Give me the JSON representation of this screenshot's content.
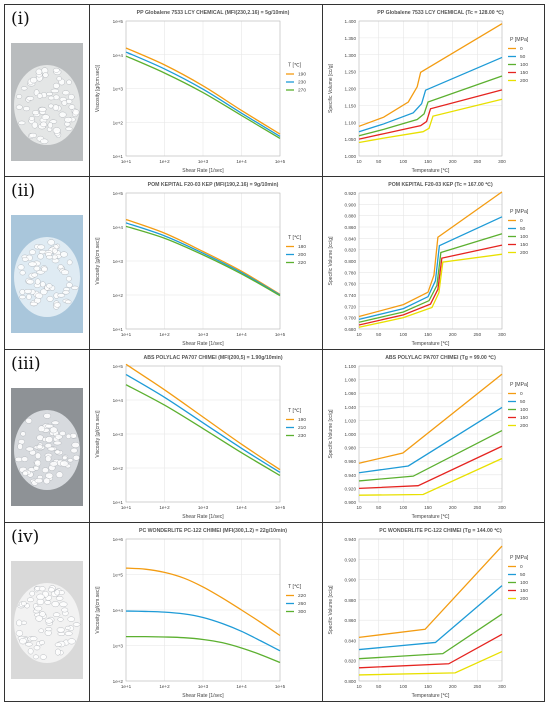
{
  "panels": [
    {
      "label": "(i)",
      "pellet_color": "#e9eaea",
      "pellet_bg": "#b9bcbe"
    },
    {
      "label": "(ii)",
      "pellet_color": "#e4eef5",
      "pellet_bg": "#a9c6db"
    },
    {
      "label": "(iii)",
      "pellet_color": "#dfe2e5",
      "pellet_bg": "#8e9296"
    },
    {
      "label": "(iv)",
      "pellet_color": "#f4f4f4",
      "pellet_bg": "#d9d9d9"
    }
  ],
  "chart_data": [
    {
      "type": "line",
      "scale": "loglog",
      "title": "PP Globalene 7533 LCY CHEMICAL (MFI(230,2.16) = 5g/10min)",
      "xlabel": "Shear Rate [1/sec]",
      "ylabel": "Viscosity [g/(cm.sec)]",
      "xticks": [
        "1e+1",
        "1e+2",
        "1e+3",
        "1e+4",
        "1e+5"
      ],
      "yticks": [
        "1e+1",
        "1e+2",
        "1e+3",
        "1e+4",
        "1e+5"
      ],
      "xlim": [
        1,
        5
      ],
      "ylim": [
        1,
        5
      ],
      "legend_title": "T [℃]",
      "series": [
        {
          "name": "190",
          "color": "#f39c12",
          "x": [
            1,
            2,
            3,
            4,
            5
          ],
          "y": [
            4.2,
            3.7,
            3.08,
            2.35,
            1.65
          ]
        },
        {
          "name": "230",
          "color": "#1e9bd7",
          "x": [
            1,
            2,
            3,
            4,
            5
          ],
          "y": [
            4.08,
            3.58,
            2.98,
            2.27,
            1.58
          ]
        },
        {
          "name": "270",
          "color": "#5cb030",
          "x": [
            1,
            2,
            3,
            4,
            5
          ],
          "y": [
            3.96,
            3.46,
            2.88,
            2.2,
            1.52
          ]
        }
      ]
    },
    {
      "type": "line",
      "scale": "linear",
      "title": "PP Globalene 7533 LCY CHEMICAL (Tc = 128.00 ℃)",
      "xlabel": "Temperature [℃]",
      "ylabel": "Specific Volume [cc/g]",
      "xticks": [
        "10",
        "50",
        "100",
        "150",
        "200",
        "250",
        "300"
      ],
      "xtick_vals": [
        10,
        50,
        100,
        150,
        200,
        250,
        300
      ],
      "yticks": [
        "1.000",
        "1.050",
        "1.100",
        "1.150",
        "1.200",
        "1.250",
        "1.300",
        "1.350",
        "1.400"
      ],
      "ytick_vals": [
        1.0,
        1.05,
        1.1,
        1.15,
        1.2,
        1.25,
        1.3,
        1.35,
        1.4
      ],
      "xlim": [
        10,
        300
      ],
      "ylim": [
        1.0,
        1.4
      ],
      "legend_title": "P [MPa]",
      "series": [
        {
          "name": "0",
          "color": "#f39c12",
          "x": [
            10,
            60,
            110,
            128,
            135,
            300
          ],
          "y": [
            1.088,
            1.115,
            1.16,
            1.205,
            1.248,
            1.392
          ]
        },
        {
          "name": "50",
          "color": "#1e9bd7",
          "x": [
            10,
            60,
            120,
            137,
            145,
            300
          ],
          "y": [
            1.072,
            1.095,
            1.128,
            1.155,
            1.195,
            1.292
          ]
        },
        {
          "name": "100",
          "color": "#5cb030",
          "x": [
            10,
            60,
            128,
            142,
            150,
            300
          ],
          "y": [
            1.06,
            1.079,
            1.108,
            1.125,
            1.16,
            1.237
          ]
        },
        {
          "name": "150",
          "color": "#e52420",
          "x": [
            10,
            60,
            135,
            147,
            155,
            300
          ],
          "y": [
            1.05,
            1.066,
            1.09,
            1.102,
            1.14,
            1.196
          ]
        },
        {
          "name": "200",
          "color": "#e8e000",
          "x": [
            10,
            60,
            140,
            152,
            160,
            300
          ],
          "y": [
            1.04,
            1.053,
            1.072,
            1.082,
            1.118,
            1.168
          ]
        }
      ]
    },
    {
      "type": "line",
      "scale": "loglog",
      "title": "POM KEPITAL F20-03 KEP (MFI(190,2.16) = 9g/10min)",
      "xlabel": "Shear Rate [1/sec]",
      "ylabel": "Viscosity [g/(cm.sec)]",
      "xticks": [
        "1e+1",
        "1e+2",
        "1e+3",
        "1e+4",
        "1e+5"
      ],
      "yticks": [
        "1e+1",
        "1e+2",
        "1e+3",
        "1e+4",
        "1e+5"
      ],
      "xlim": [
        1,
        5
      ],
      "ylim": [
        1,
        5
      ],
      "legend_title": "T [℃]",
      "series": [
        {
          "name": "180",
          "color": "#f39c12",
          "x": [
            1,
            2,
            3,
            4,
            5
          ],
          "y": [
            4.22,
            3.82,
            3.28,
            2.7,
            2.02
          ]
        },
        {
          "name": "200",
          "color": "#1e9bd7",
          "x": [
            1,
            2,
            3,
            4,
            5
          ],
          "y": [
            4.12,
            3.74,
            3.23,
            2.66,
            2.0
          ]
        },
        {
          "name": "220",
          "color": "#5cb030",
          "x": [
            1,
            2,
            3,
            4,
            5
          ],
          "y": [
            4.02,
            3.67,
            3.18,
            2.62,
            1.98
          ]
        }
      ]
    },
    {
      "type": "line",
      "scale": "linear",
      "title": "POM KEPITAL F20-03 KEP (Tc = 167.00 ℃)",
      "xlabel": "Temperature [℃]",
      "ylabel": "Specific Volume [cc/g]",
      "xticks": [
        "10",
        "50",
        "100",
        "150",
        "200",
        "250",
        "300"
      ],
      "xtick_vals": [
        10,
        50,
        100,
        150,
        200,
        250,
        300
      ],
      "yticks": [
        "0.680",
        "0.700",
        "0.720",
        "0.740",
        "0.760",
        "0.780",
        "0.800",
        "0.820",
        "0.840",
        "0.860",
        "0.880",
        "0.900",
        "0.920"
      ],
      "ytick_vals": [
        0.68,
        0.7,
        0.72,
        0.74,
        0.76,
        0.78,
        0.8,
        0.82,
        0.84,
        0.86,
        0.88,
        0.9,
        0.92
      ],
      "xlim": [
        10,
        300
      ],
      "ylim": [
        0.68,
        0.92
      ],
      "legend_title": "P [MPa]",
      "series": [
        {
          "name": "0",
          "color": "#f39c12",
          "x": [
            10,
            100,
            150,
            162,
            170,
            300
          ],
          "y": [
            0.702,
            0.723,
            0.745,
            0.775,
            0.842,
            0.922
          ]
        },
        {
          "name": "50",
          "color": "#1e9bd7",
          "x": [
            10,
            100,
            150,
            165,
            173,
            300
          ],
          "y": [
            0.697,
            0.716,
            0.737,
            0.765,
            0.827,
            0.878
          ]
        },
        {
          "name": "100",
          "color": "#5cb030",
          "x": [
            10,
            100,
            152,
            168,
            176,
            300
          ],
          "y": [
            0.692,
            0.71,
            0.73,
            0.757,
            0.815,
            0.848
          ]
        },
        {
          "name": "150",
          "color": "#e52420",
          "x": [
            10,
            100,
            155,
            170,
            178,
            300
          ],
          "y": [
            0.687,
            0.705,
            0.724,
            0.75,
            0.805,
            0.828
          ]
        },
        {
          "name": "200",
          "color": "#e8e000",
          "x": [
            10,
            100,
            158,
            172,
            180,
            300
          ],
          "y": [
            0.683,
            0.7,
            0.718,
            0.744,
            0.798,
            0.812
          ]
        }
      ]
    },
    {
      "type": "line",
      "scale": "loglog",
      "title": "ABS POLYLAC PA707 CHIMEI (MFI(200,5) = 1.90g/10min)",
      "xlabel": "Shear Rate [1/sec]",
      "ylabel": "Viscosity [g/(cm.sec)]",
      "xticks": [
        "1e+1",
        "1e+2",
        "1e+3",
        "1e+4",
        "1e+5"
      ],
      "yticks": [
        "1e+1",
        "1e+2",
        "1e+3",
        "1e+4",
        "1e+5"
      ],
      "xlim": [
        1,
        5
      ],
      "ylim": [
        1,
        5
      ],
      "legend_title": "T [℃]",
      "series": [
        {
          "name": "190",
          "color": "#f39c12",
          "x": [
            1,
            2,
            3,
            4,
            5
          ],
          "y": [
            5.05,
            4.3,
            3.5,
            2.7,
            1.95
          ]
        },
        {
          "name": "210",
          "color": "#1e9bd7",
          "x": [
            1,
            2,
            3,
            4,
            5
          ],
          "y": [
            4.75,
            4.08,
            3.33,
            2.58,
            1.87
          ]
        },
        {
          "name": "230",
          "color": "#5cb030",
          "x": [
            1,
            2,
            3,
            4,
            5
          ],
          "y": [
            4.45,
            3.85,
            3.16,
            2.45,
            1.78
          ]
        }
      ]
    },
    {
      "type": "line",
      "scale": "linear",
      "title": "ABS POLYLAC PA707 CHIMEI (Tg = 99.00 ℃)",
      "xlabel": "Temperature [℃]",
      "ylabel": "Specific Volume [cc/g]",
      "xticks": [
        "10",
        "50",
        "100",
        "150",
        "200",
        "250",
        "300"
      ],
      "xtick_vals": [
        10,
        50,
        100,
        150,
        200,
        250,
        300
      ],
      "yticks": [
        "0.900",
        "0.920",
        "0.940",
        "0.960",
        "0.980",
        "1.000",
        "1.020",
        "1.040",
        "1.060",
        "1.080",
        "1.100"
      ],
      "ytick_vals": [
        0.9,
        0.92,
        0.94,
        0.96,
        0.98,
        1.0,
        1.02,
        1.04,
        1.06,
        1.08,
        1.1
      ],
      "xlim": [
        10,
        300
      ],
      "ylim": [
        0.9,
        1.1
      ],
      "legend_title": "P [MPa]",
      "series": [
        {
          "name": "0",
          "color": "#f39c12",
          "x": [
            10,
            99,
            300
          ],
          "y": [
            0.957,
            0.972,
            1.088
          ]
        },
        {
          "name": "50",
          "color": "#1e9bd7",
          "x": [
            10,
            110,
            300
          ],
          "y": [
            0.943,
            0.953,
            1.039
          ]
        },
        {
          "name": "100",
          "color": "#5cb030",
          "x": [
            10,
            120,
            300
          ],
          "y": [
            0.931,
            0.938,
            1.005
          ]
        },
        {
          "name": "150",
          "color": "#e52420",
          "x": [
            10,
            130,
            300
          ],
          "y": [
            0.92,
            0.924,
            0.982
          ]
        },
        {
          "name": "200",
          "color": "#e8e000",
          "x": [
            10,
            140,
            300
          ],
          "y": [
            0.91,
            0.911,
            0.964
          ]
        }
      ]
    },
    {
      "type": "line",
      "scale": "loglog",
      "title": "PC WONDERLITE PC-122 CHIMEI (MFI(300,1.2) = 22g/10min)",
      "xlabel": "Shear Rate [1/sec]",
      "ylabel": "Viscosity [g/(cm.sec)]",
      "xticks": [
        "1e+1",
        "1e+2",
        "1e+3",
        "1e+4",
        "1e+5"
      ],
      "yticks": [
        "1e+2",
        "1e+3",
        "1e+4",
        "1e+5",
        "1e+6"
      ],
      "xlim": [
        1,
        5
      ],
      "ylim": [
        2,
        6
      ],
      "legend_title": "T [℃]",
      "series": [
        {
          "name": "220",
          "color": "#f39c12",
          "x": [
            1,
            1.5,
            2,
            2.5,
            3,
            3.5,
            4,
            4.5,
            5
          ],
          "y": [
            5.18,
            5.15,
            5.06,
            4.9,
            4.65,
            4.34,
            4.0,
            3.65,
            3.28
          ]
        },
        {
          "name": "260",
          "color": "#1e9bd7",
          "x": [
            1,
            1.5,
            2,
            2.5,
            3,
            3.5,
            4,
            4.5,
            5
          ],
          "y": [
            3.97,
            3.96,
            3.94,
            3.89,
            3.79,
            3.62,
            3.4,
            3.13,
            2.85
          ]
        },
        {
          "name": "300",
          "color": "#5cb030",
          "x": [
            1,
            1.5,
            2,
            2.5,
            3,
            3.5,
            4,
            4.5,
            5
          ],
          "y": [
            3.25,
            3.25,
            3.24,
            3.22,
            3.17,
            3.08,
            2.93,
            2.74,
            2.52
          ]
        }
      ]
    },
    {
      "type": "line",
      "scale": "linear",
      "title": "PC WONDERLITE PC-122 CHIMEI (Tg = 144.00 ℃)",
      "xlabel": "Temperature [℃]",
      "ylabel": "Specific Volume [cc/g]",
      "xticks": [
        "10",
        "50",
        "100",
        "150",
        "200",
        "250",
        "300"
      ],
      "xtick_vals": [
        10,
        50,
        100,
        150,
        200,
        250,
        300
      ],
      "yticks": [
        "0.800",
        "0.820",
        "0.840",
        "0.860",
        "0.880",
        "0.900",
        "0.920",
        "0.940"
      ],
      "ytick_vals": [
        0.8,
        0.82,
        0.84,
        0.86,
        0.88,
        0.9,
        0.92,
        0.94
      ],
      "xlim": [
        10,
        300
      ],
      "ylim": [
        0.8,
        0.94
      ],
      "legend_title": "P [MPa]",
      "series": [
        {
          "name": "0",
          "color": "#f39c12",
          "x": [
            10,
            144,
            300
          ],
          "y": [
            0.843,
            0.851,
            0.933
          ]
        },
        {
          "name": "50",
          "color": "#1e9bd7",
          "x": [
            10,
            165,
            300
          ],
          "y": [
            0.831,
            0.838,
            0.894
          ]
        },
        {
          "name": "100",
          "color": "#5cb030",
          "x": [
            10,
            180,
            300
          ],
          "y": [
            0.822,
            0.827,
            0.866
          ]
        },
        {
          "name": "150",
          "color": "#e52420",
          "x": [
            10,
            192,
            300
          ],
          "y": [
            0.813,
            0.817,
            0.846
          ]
        },
        {
          "name": "200",
          "color": "#e8e000",
          "x": [
            10,
            205,
            300
          ],
          "y": [
            0.806,
            0.808,
            0.829
          ]
        }
      ]
    }
  ]
}
